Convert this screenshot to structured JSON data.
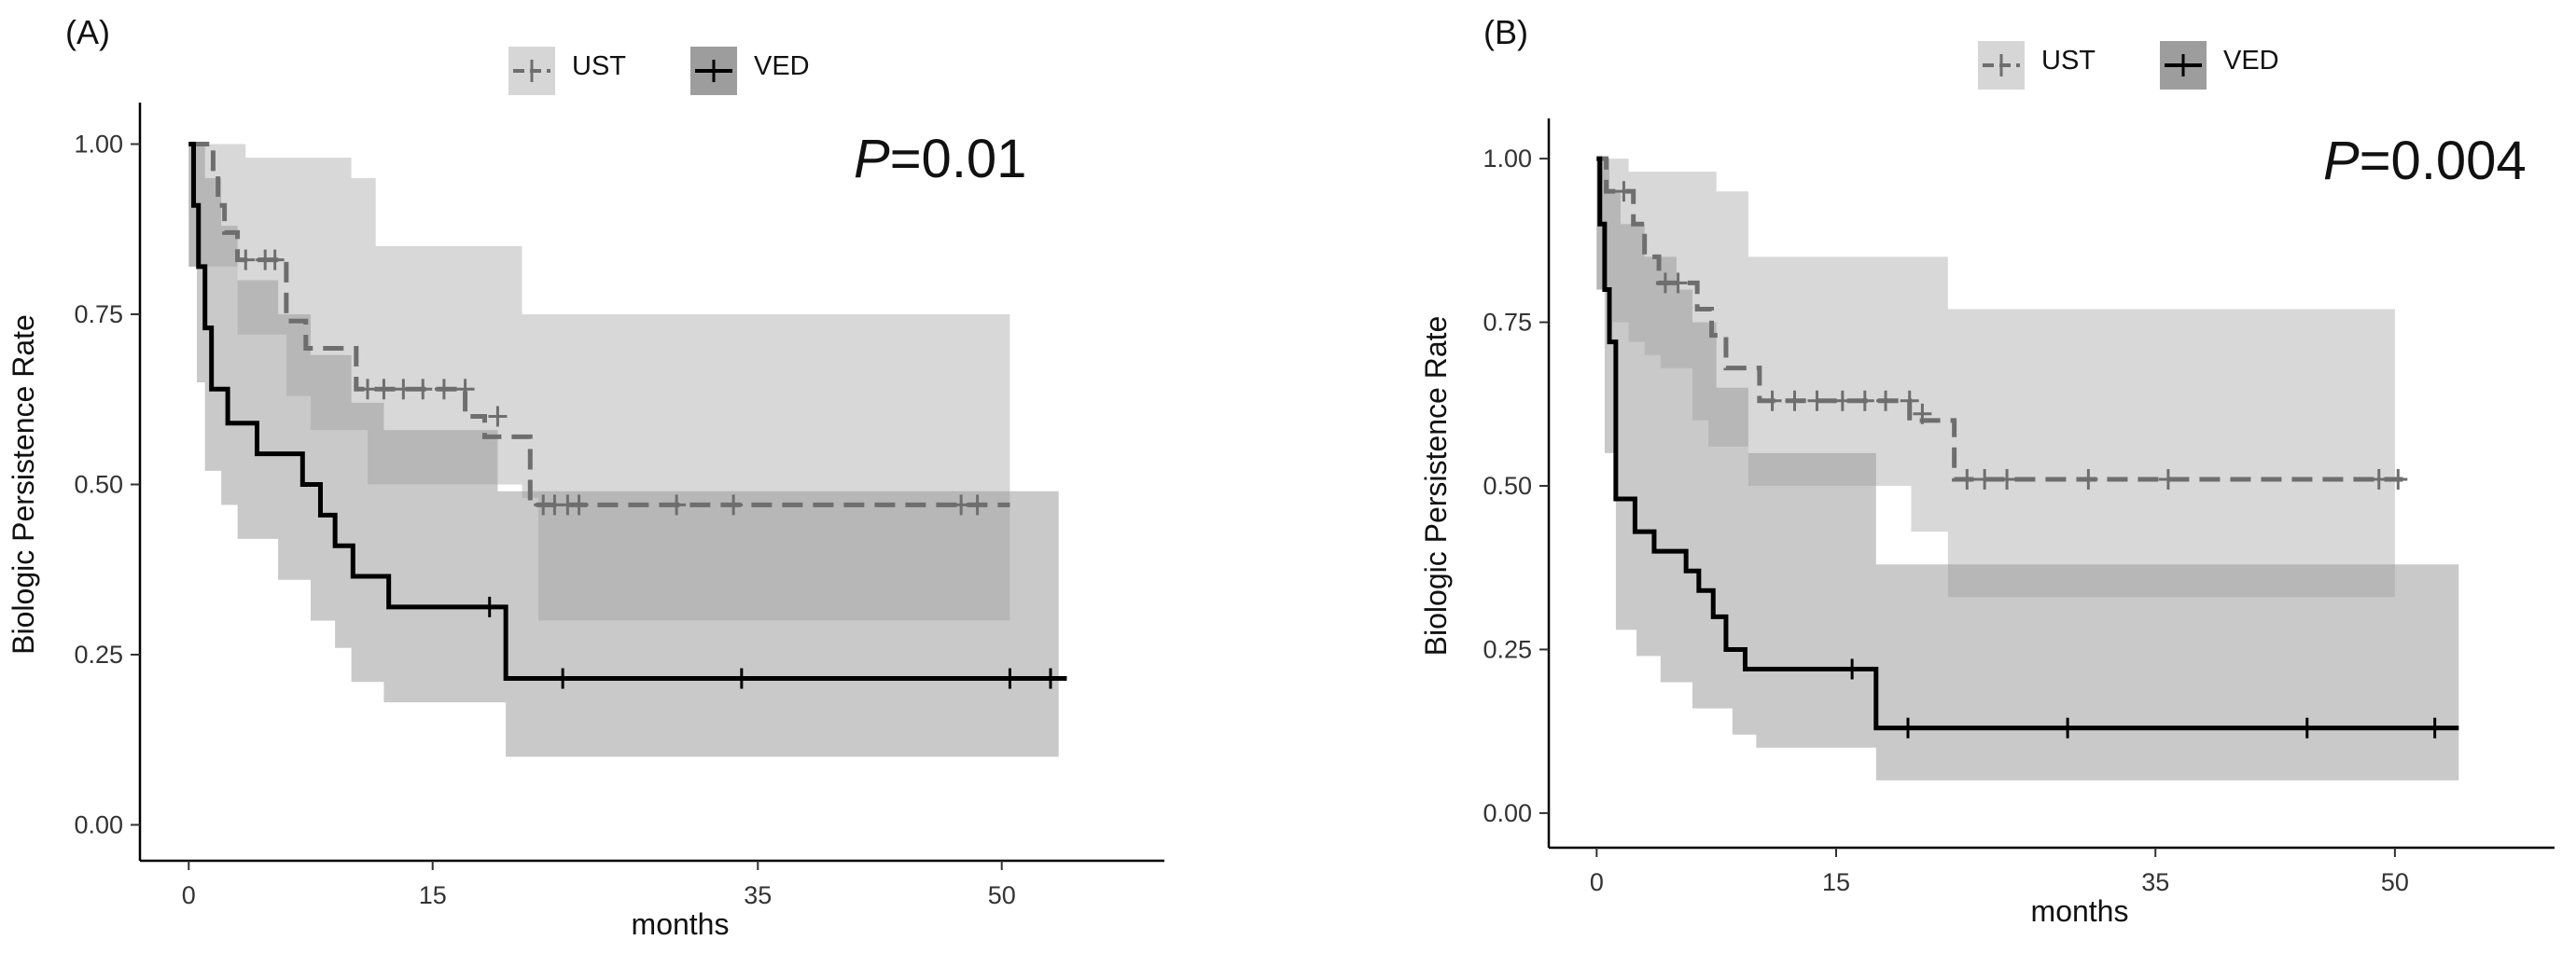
{
  "chart_data": [
    {
      "type": "line",
      "panel_label": "(A)",
      "xlabel": "months",
      "ylabel": "Biologic Persistence Rate",
      "xticks": [
        0,
        15,
        35,
        50
      ],
      "xlim": [
        -3,
        60
      ],
      "yticks": [
        "0.00",
        "0.25",
        "0.50",
        "0.75",
        "1.00"
      ],
      "ytick_values": [
        0,
        0.25,
        0.5,
        0.75,
        1.0
      ],
      "ylim": [
        -0.05,
        1.05
      ],
      "p_label": "P",
      "p_value": "=0.01",
      "legend": [
        "UST",
        "VED"
      ],
      "series": [
        {
          "name": "UST",
          "style": "dashed",
          "color": "#6e6e6e",
          "steps": [
            [
              0,
              1.0
            ],
            [
              1.5,
              0.955
            ],
            [
              1.8,
              0.91
            ],
            [
              2.2,
              0.87
            ],
            [
              3,
              0.83
            ],
            [
              6,
              0.74
            ],
            [
              7.2,
              0.7
            ],
            [
              10.3,
              0.64
            ],
            [
              17,
              0.6
            ],
            [
              18.2,
              0.57
            ],
            [
              19,
              0.57
            ],
            [
              21,
              0.47
            ],
            [
              50.5,
              0.47
            ]
          ],
          "censor": [
            [
              3.5,
              0.83
            ],
            [
              4.7,
              0.83
            ],
            [
              5.3,
              0.83
            ],
            [
              11,
              0.64
            ],
            [
              12,
              0.64
            ],
            [
              13.2,
              0.64
            ],
            [
              14.4,
              0.64
            ],
            [
              15.7,
              0.64
            ],
            [
              17,
              0.64
            ],
            [
              19,
              0.6
            ],
            [
              21.8,
              0.47
            ],
            [
              22.5,
              0.47
            ],
            [
              23.3,
              0.47
            ],
            [
              24,
              0.47
            ],
            [
              30,
              0.47
            ],
            [
              33.5,
              0.47
            ],
            [
              47.5,
              0.47
            ],
            [
              48.5,
              0.47
            ]
          ],
          "ci_upper": [
            [
              0,
              1.0
            ],
            [
              3.5,
              0.98
            ],
            [
              10,
              0.95
            ],
            [
              11.5,
              0.85
            ],
            [
              20.5,
              0.75
            ],
            [
              50.5,
              0.75
            ]
          ],
          "ci_lower": [
            [
              0,
              0.82
            ],
            [
              3,
              0.72
            ],
            [
              6,
              0.63
            ],
            [
              7.5,
              0.58
            ],
            [
              11,
              0.5
            ],
            [
              20.5,
              0.48
            ],
            [
              21.5,
              0.3
            ],
            [
              50.5,
              0.3
            ]
          ]
        },
        {
          "name": "VED",
          "style": "solid",
          "color": "#000000",
          "steps": [
            [
              0,
              1.0
            ],
            [
              0.3,
              0.91
            ],
            [
              0.6,
              0.82
            ],
            [
              1.0,
              0.73
            ],
            [
              1.4,
              0.64
            ],
            [
              2.4,
              0.59
            ],
            [
              4.2,
              0.545
            ],
            [
              7,
              0.5
            ],
            [
              8.1,
              0.455
            ],
            [
              9,
              0.41
            ],
            [
              10.1,
              0.365
            ],
            [
              12.3,
              0.32
            ],
            [
              19.5,
              0.215
            ],
            [
              54,
              0.215
            ]
          ],
          "censor": [
            [
              18.5,
              0.32
            ],
            [
              23,
              0.215
            ],
            [
              34,
              0.215
            ],
            [
              50.5,
              0.215
            ],
            [
              53,
              0.215
            ]
          ],
          "ci_upper": [
            [
              0,
              1.0
            ],
            [
              1,
              0.95
            ],
            [
              2,
              0.88
            ],
            [
              3,
              0.8
            ],
            [
              5.5,
              0.75
            ],
            [
              7.5,
              0.69
            ],
            [
              10,
              0.62
            ],
            [
              12,
              0.58
            ],
            [
              19,
              0.49
            ],
            [
              53.5,
              0.49
            ]
          ],
          "ci_lower": [
            [
              0,
              0.82
            ],
            [
              0.5,
              0.65
            ],
            [
              1,
              0.52
            ],
            [
              2,
              0.47
            ],
            [
              3,
              0.42
            ],
            [
              5.5,
              0.36
            ],
            [
              7.5,
              0.3
            ],
            [
              9,
              0.26
            ],
            [
              10,
              0.21
            ],
            [
              12,
              0.18
            ],
            [
              19.5,
              0.1
            ],
            [
              53.5,
              0.1
            ]
          ]
        }
      ]
    },
    {
      "type": "line",
      "panel_label": "(B)",
      "xlabel": "months",
      "ylabel": "Biologic Persistence Rate",
      "xticks": [
        0,
        15,
        35,
        50
      ],
      "xlim": [
        -3,
        60
      ],
      "yticks": [
        "0.00",
        "0.25",
        "0.50",
        "0.75",
        "1.00"
      ],
      "ytick_values": [
        0,
        0.25,
        0.5,
        0.75,
        1.0
      ],
      "ylim": [
        -0.05,
        1.05
      ],
      "p_label": "P",
      "p_value": "=0.004",
      "legend": [
        "UST",
        "VED"
      ],
      "series": [
        {
          "name": "UST",
          "style": "dashed",
          "color": "#6e6e6e",
          "steps": [
            [
              0,
              1.0
            ],
            [
              0.6,
              0.95
            ],
            [
              2.3,
              0.9
            ],
            [
              3,
              0.85
            ],
            [
              3.9,
              0.81
            ],
            [
              6.3,
              0.77
            ],
            [
              7.2,
              0.73
            ],
            [
              8.1,
              0.68
            ],
            [
              10.2,
              0.63
            ],
            [
              19.6,
              0.6
            ],
            [
              22.4,
              0.51
            ],
            [
              50.5,
              0.51
            ]
          ],
          "censor": [
            [
              1.7,
              0.95
            ],
            [
              4.3,
              0.81
            ],
            [
              5.1,
              0.81
            ],
            [
              11,
              0.63
            ],
            [
              12.4,
              0.63
            ],
            [
              13.8,
              0.63
            ],
            [
              15.4,
              0.63
            ],
            [
              16.8,
              0.63
            ],
            [
              18.1,
              0.63
            ],
            [
              19.6,
              0.63
            ],
            [
              20.4,
              0.61
            ],
            [
              23.2,
              0.51
            ],
            [
              24.3,
              0.51
            ],
            [
              25.7,
              0.51
            ],
            [
              30.8,
              0.51
            ],
            [
              35.8,
              0.51
            ],
            [
              49,
              0.51
            ],
            [
              50.2,
              0.51
            ]
          ],
          "ci_upper": [
            [
              0,
              1.0
            ],
            [
              2,
              0.98
            ],
            [
              7.5,
              0.95
            ],
            [
              9.5,
              0.85
            ],
            [
              22,
              0.77
            ],
            [
              50,
              0.77
            ]
          ],
          "ci_lower": [
            [
              0,
              0.8
            ],
            [
              1,
              0.75
            ],
            [
              2,
              0.72
            ],
            [
              3,
              0.7
            ],
            [
              4,
              0.68
            ],
            [
              6,
              0.6
            ],
            [
              7,
              0.56
            ],
            [
              9.5,
              0.5
            ],
            [
              12,
              0.5
            ],
            [
              19.7,
              0.43
            ],
            [
              22,
              0.33
            ],
            [
              50,
              0.33
            ]
          ]
        },
        {
          "name": "VED",
          "style": "solid",
          "color": "#000000",
          "steps": [
            [
              0,
              1.0
            ],
            [
              0.2,
              0.9
            ],
            [
              0.5,
              0.8
            ],
            [
              0.8,
              0.72
            ],
            [
              1.2,
              0.48
            ],
            [
              2.4,
              0.43
            ],
            [
              3.6,
              0.4
            ],
            [
              5.6,
              0.37
            ],
            [
              6.4,
              0.34
            ],
            [
              7.3,
              0.3
            ],
            [
              8.1,
              0.25
            ],
            [
              9.3,
              0.22
            ],
            [
              17.5,
              0.13
            ],
            [
              54,
              0.13
            ]
          ],
          "censor": [
            [
              16,
              0.22
            ],
            [
              19.5,
              0.13
            ],
            [
              29.5,
              0.13
            ],
            [
              44.5,
              0.13
            ],
            [
              52.5,
              0.13
            ]
          ],
          "ci_upper": [
            [
              0,
              1.0
            ],
            [
              0.8,
              0.95
            ],
            [
              1.5,
              0.9
            ],
            [
              3,
              0.85
            ],
            [
              5,
              0.8
            ],
            [
              6,
              0.75
            ],
            [
              7.5,
              0.65
            ],
            [
              9.5,
              0.55
            ],
            [
              17.5,
              0.38
            ],
            [
              54,
              0.38
            ]
          ],
          "ci_lower": [
            [
              0,
              0.8
            ],
            [
              0.5,
              0.55
            ],
            [
              1.2,
              0.28
            ],
            [
              2.5,
              0.24
            ],
            [
              4,
              0.2
            ],
            [
              6,
              0.16
            ],
            [
              8.5,
              0.12
            ],
            [
              10,
              0.1
            ],
            [
              17.5,
              0.05
            ],
            [
              54,
              0.05
            ]
          ]
        }
      ]
    }
  ]
}
